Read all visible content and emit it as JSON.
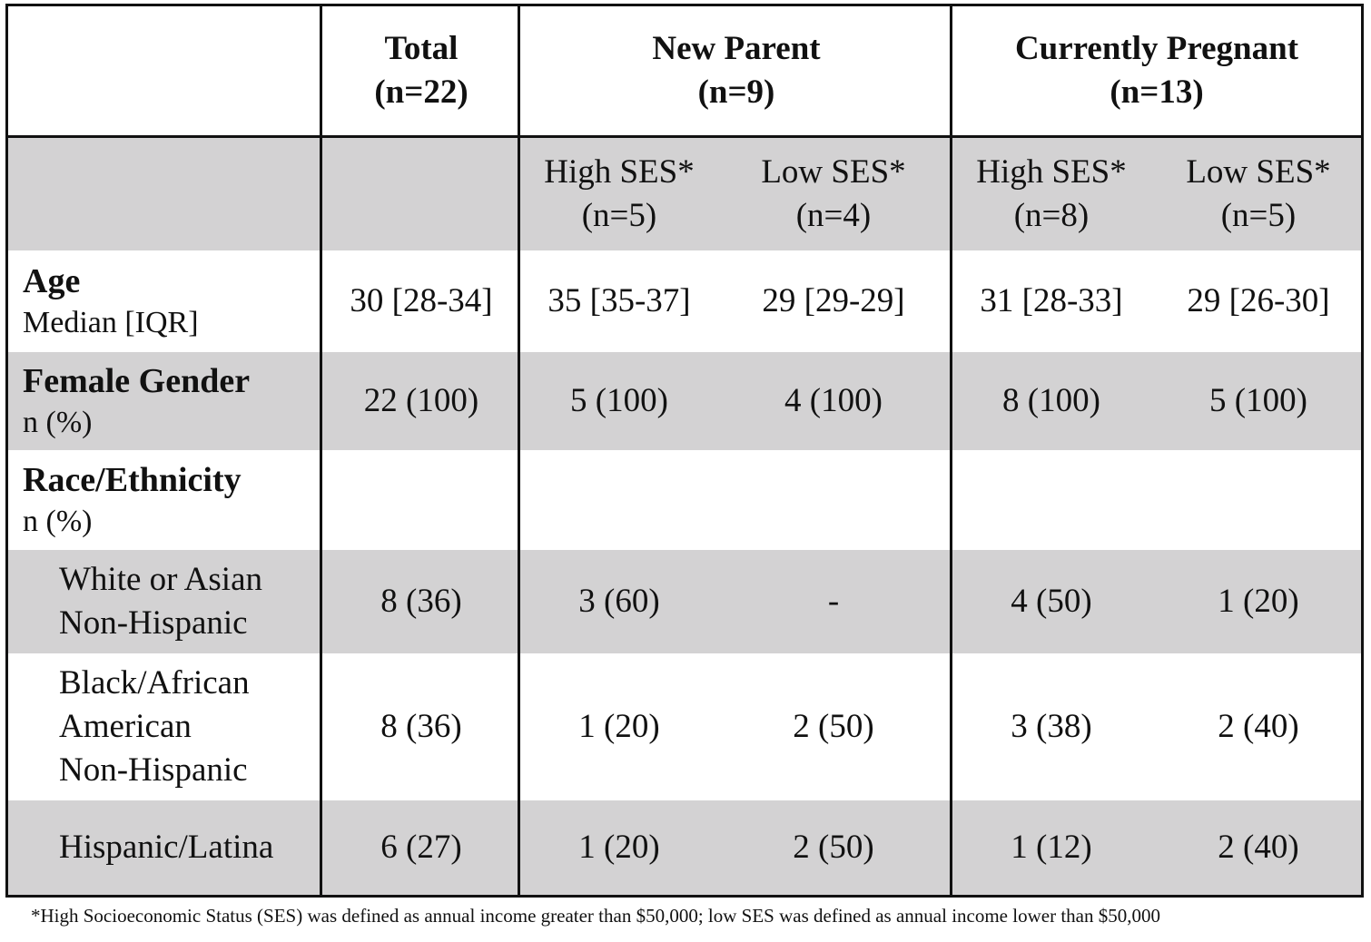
{
  "header": {
    "total": {
      "title": "Total",
      "n": "(n=22)"
    },
    "new_parent": {
      "title": "New Parent",
      "n": "(n=9)"
    },
    "currently_pregnant": {
      "title": "Currently Pregnant",
      "n": "(n=13)"
    }
  },
  "subheader": {
    "np_high": {
      "label": "High SES*",
      "n": "(n=5)"
    },
    "np_low": {
      "label": "Low SES*",
      "n": "(n=4)"
    },
    "cp_high": {
      "label": "High SES*",
      "n": "(n=8)"
    },
    "cp_low": {
      "label": "Low SES*",
      "n": "(n=5)"
    }
  },
  "rows": {
    "age": {
      "label": "Age",
      "sub": "Median [IQR]",
      "values": [
        "30 [28-34]",
        "35 [35-37]",
        "29 [29-29]",
        "31 [28-33]",
        "29 [26-30]"
      ]
    },
    "female": {
      "label": "Female Gender",
      "sub": "n (%)",
      "values": [
        "22 (100)",
        "5 (100)",
        "4 (100)",
        "8 (100)",
        "5 (100)"
      ]
    },
    "race": {
      "label": "Race/Ethnicity",
      "sub": "n (%)"
    },
    "white": {
      "label_line1": "White or Asian",
      "label_line2": "Non-Hispanic",
      "values": [
        "8 (36)",
        "3 (60)",
        "-",
        "4 (50)",
        "1 (20)"
      ]
    },
    "black": {
      "label_line1": "Black/African",
      "label_line2": "American",
      "label_line3": "Non-Hispanic",
      "values": [
        "8 (36)",
        "1 (20)",
        "2 (50)",
        "3 (38)",
        "2 (40)"
      ]
    },
    "hispanic": {
      "label": "Hispanic/Latina",
      "values": [
        "6 (27)",
        "1 (20)",
        "2 (50)",
        "1 (12)",
        "2 (40)"
      ]
    }
  },
  "footnote": "*High Socioeconomic Status (SES) was defined as annual income greater than $50,000; low SES was defined as annual income lower than $50,000"
}
